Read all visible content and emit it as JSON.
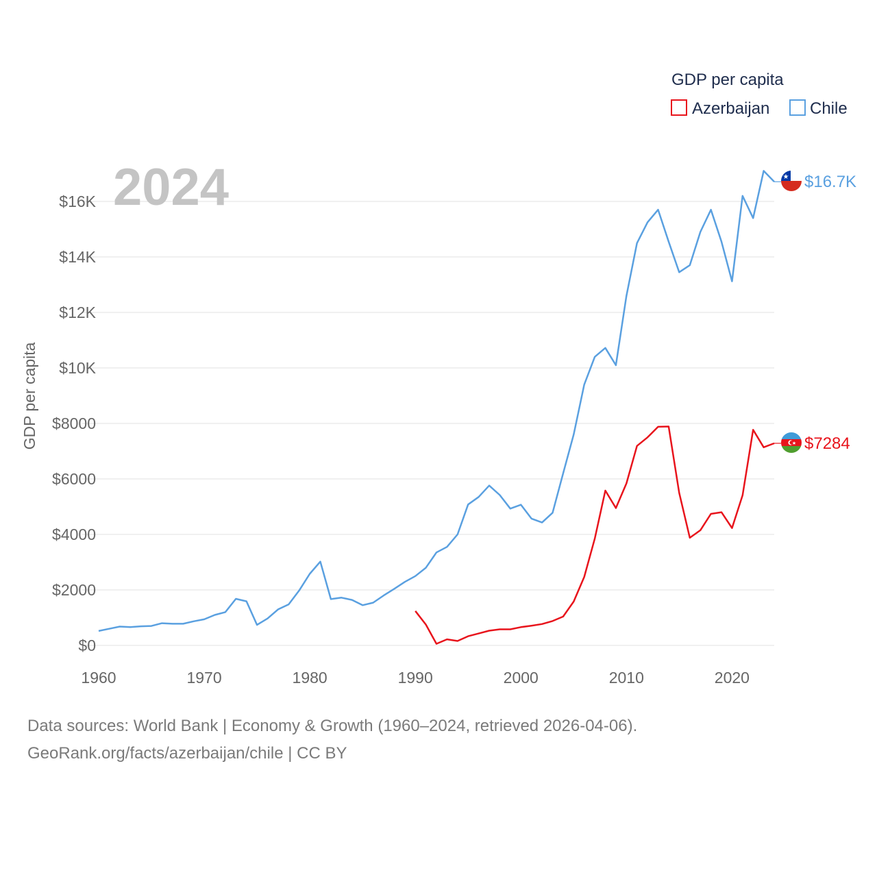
{
  "chart_data": {
    "type": "line",
    "year_label": "2024",
    "ylabel": "GDP per capita",
    "xlim": [
      1960,
      2024
    ],
    "ylim": [
      0,
      17500
    ],
    "x_ticks": [
      1960,
      1970,
      1980,
      1990,
      2000,
      2010,
      2020
    ],
    "x_tick_labels": [
      "1960",
      "1970",
      "1980",
      "1990",
      "2000",
      "2010",
      "2020"
    ],
    "y_ticks": [
      0,
      2000,
      4000,
      6000,
      8000,
      10000,
      12000,
      14000,
      16000
    ],
    "y_tick_labels": [
      "$0",
      "$2000",
      "$4000",
      "$6000",
      "$8000",
      "$10K",
      "$12K",
      "$14K",
      "$16K"
    ],
    "legend": {
      "title": "GDP per capita",
      "placement": "top-right",
      "entries": [
        "Azerbaijan",
        "Chile"
      ]
    },
    "series": [
      {
        "name": "Azerbaijan",
        "color": "#e8141c",
        "end_label": "$7284",
        "flag": "azerbaijan-flag",
        "x": [
          1990,
          1991,
          1992,
          1993,
          1994,
          1995,
          1996,
          1997,
          1998,
          1999,
          2000,
          2001,
          2002,
          2003,
          2004,
          2005,
          2006,
          2007,
          2008,
          2009,
          2010,
          2011,
          2012,
          2013,
          2014,
          2015,
          2016,
          2017,
          2018,
          2019,
          2020,
          2021,
          2022,
          2023,
          2024
        ],
        "values": [
          1240,
          750,
          60,
          220,
          160,
          330,
          430,
          530,
          580,
          580,
          660,
          710,
          770,
          880,
          1040,
          1580,
          2470,
          3850,
          5580,
          4950,
          5840,
          7190,
          7500,
          7880,
          7890,
          5500,
          3880,
          4150,
          4740,
          4800,
          4230,
          5410,
          7770,
          7140,
          7284
        ]
      },
      {
        "name": "Chile",
        "color": "#5aa0e0",
        "end_label": "$16.7K",
        "flag": "chile-flag",
        "x": [
          1960,
          1961,
          1962,
          1963,
          1964,
          1965,
          1966,
          1967,
          1968,
          1969,
          1970,
          1971,
          1972,
          1973,
          1974,
          1975,
          1976,
          1977,
          1978,
          1979,
          1980,
          1981,
          1982,
          1983,
          1984,
          1985,
          1986,
          1987,
          1988,
          1989,
          1990,
          1991,
          1992,
          1993,
          1994,
          1995,
          1996,
          1997,
          1998,
          1999,
          2000,
          2001,
          2002,
          2003,
          2004,
          2005,
          2006,
          2007,
          2008,
          2009,
          2010,
          2011,
          2012,
          2013,
          2014,
          2015,
          2016,
          2017,
          2018,
          2019,
          2020,
          2021,
          2022,
          2023,
          2024
        ],
        "values": [
          520,
          600,
          680,
          660,
          690,
          700,
          800,
          780,
          780,
          870,
          940,
          1100,
          1200,
          1680,
          1590,
          740,
          970,
          1300,
          1480,
          1980,
          2580,
          3020,
          1670,
          1720,
          1640,
          1450,
          1540,
          1800,
          2040,
          2290,
          2500,
          2800,
          3350,
          3550,
          4000,
          5080,
          5350,
          5760,
          5420,
          4930,
          5070,
          4570,
          4430,
          4780,
          6200,
          7600,
          9400,
          10400,
          10720,
          10100,
          12600,
          14500,
          15250,
          15700,
          14550,
          13450,
          13700,
          14900,
          15700,
          14550,
          13120,
          16200,
          15400,
          17100,
          16710
        ]
      }
    ]
  },
  "footer": {
    "line1": "Data sources: World Bank | Economy & Growth (1960–2024, retrieved 2026-04-06).",
    "line2": "GeoRank.org/facts/azerbaijan/chile | CC BY"
  }
}
